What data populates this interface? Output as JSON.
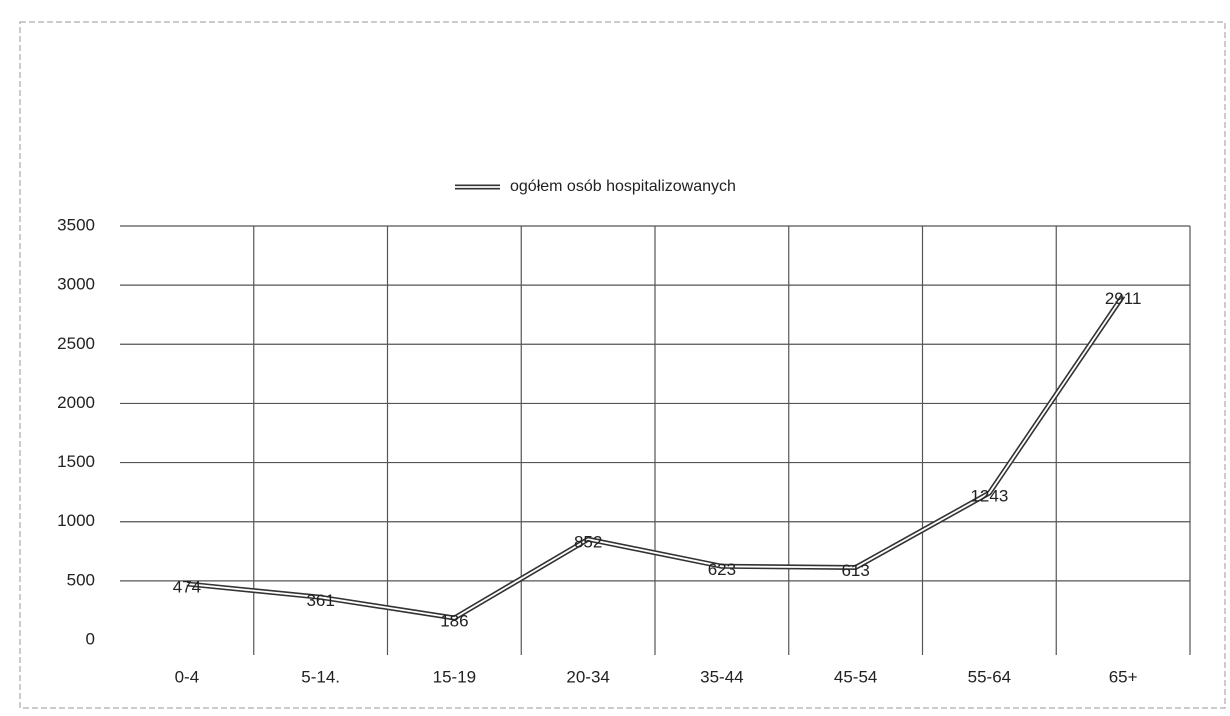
{
  "chart_data": {
    "type": "line",
    "categories": [
      "0-4",
      "5-14.",
      "15-19",
      "20-34",
      "35-44",
      "45-54",
      "55-64",
      "65+"
    ],
    "series": [
      {
        "name": "ogółem osób  hospitalizowanych",
        "color": "#333333",
        "values": [
          474,
          361,
          186,
          852,
          623,
          613,
          1243,
          2911
        ]
      }
    ],
    "ylim": [
      0,
      3500
    ],
    "yticks": [
      0,
      500,
      1000,
      1500,
      2000,
      2500,
      3000,
      3500
    ],
    "grid": true,
    "legend": "top"
  }
}
